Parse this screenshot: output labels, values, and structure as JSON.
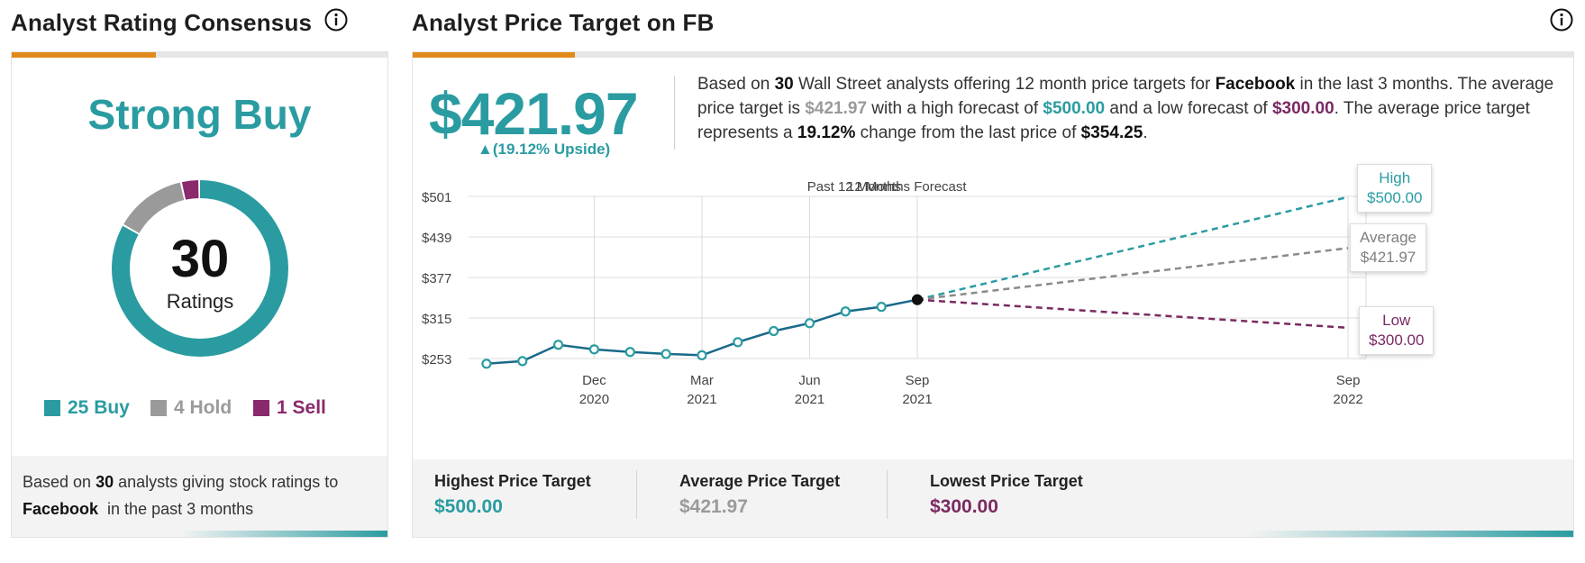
{
  "left_panel": {
    "title": "Analyst Rating Consensus",
    "rating": "Strong Buy",
    "total_ratings": "30",
    "ratings_label": "Ratings",
    "legend": [
      {
        "label": "25 Buy",
        "count": 25,
        "color": "#2a9ca1"
      },
      {
        "label": "4 Hold",
        "count": 4,
        "color": "#9a9a9a"
      },
      {
        "label": "1 Sell",
        "count": 1,
        "color": "#8a2a6c"
      }
    ],
    "footer": {
      "prefix": "Based on",
      "count": "30",
      "middle": "analysts giving stock ratings to",
      "company": "Facebook",
      "suffix": "in the past 3 months"
    }
  },
  "right_panel": {
    "title": "Analyst Price Target on FB",
    "price": "$421.97",
    "upside": "▲(19.12% Upside)",
    "description": {
      "t1": "Based on",
      "analysts": "30",
      "t2": "Wall Street analysts offering 12 month price targets for",
      "company": "Facebook",
      "t3": "in the last 3 months. The average price target is",
      "avg": "$421.97",
      "t4": "with a high forecast of",
      "high": "$500.00",
      "t5": "and a low forecast of",
      "low": "$300.00",
      "t6": ". The average price target represents a",
      "change": "19.12%",
      "t7": "change from the last price of",
      "last": "$354.25",
      "t8": "."
    },
    "callouts": {
      "high_label": "High",
      "high_value": "$500.00",
      "avg_label": "Average",
      "avg_value": "$421.97",
      "low_label": "Low",
      "low_value": "$300.00"
    },
    "footer": {
      "highest_label": "Highest Price Target",
      "highest_value": "$500.00",
      "average_label": "Average Price Target",
      "average_value": "$421.97",
      "lowest_label": "Lowest Price Target",
      "lowest_value": "$300.00"
    }
  },
  "colors": {
    "teal": "#2a9ca1",
    "gray": "#9a9a9a",
    "purple": "#7a2a62",
    "orange": "#e08a19",
    "line": "#1a6a8a"
  },
  "chart_data": {
    "type": "line",
    "title": "",
    "period_labels": [
      "Past 12 Months",
      "12 Months Forecast"
    ],
    "y_ticks": [
      501,
      439,
      377,
      315,
      253
    ],
    "y_tick_labels": [
      "$501",
      "$439",
      "$377",
      "$315",
      "$253"
    ],
    "ylim": [
      253,
      501
    ],
    "x_ticks": [
      {
        "t": 3.5,
        "label_1": "Dec",
        "label_2": "2020"
      },
      {
        "t": 6.5,
        "label_1": "Mar",
        "label_2": "2021"
      },
      {
        "t": 9.5,
        "label_1": "Jun",
        "label_2": "2021"
      },
      {
        "t": 12.5,
        "label_1": "Sep",
        "label_2": "2021"
      },
      {
        "t": 24.5,
        "label_1": "Sep",
        "label_2": "2022"
      }
    ],
    "xlim": [
      0,
      25
    ],
    "series": [
      {
        "name": "Price",
        "t": [
          0.5,
          1.5,
          2.5,
          3.5,
          4.5,
          5.5,
          6.5,
          7.5,
          8.5,
          9.5,
          10.5,
          11.5,
          12.5
        ],
        "values": [
          245,
          249,
          274,
          267,
          263,
          260,
          258,
          278,
          295,
          307,
          325,
          332,
          343
        ]
      }
    ],
    "forecast": [
      {
        "name": "High",
        "start": 343,
        "end": 500
      },
      {
        "name": "Average",
        "start": 343,
        "end": 421.97
      },
      {
        "name": "Low",
        "start": 343,
        "end": 300
      }
    ]
  }
}
